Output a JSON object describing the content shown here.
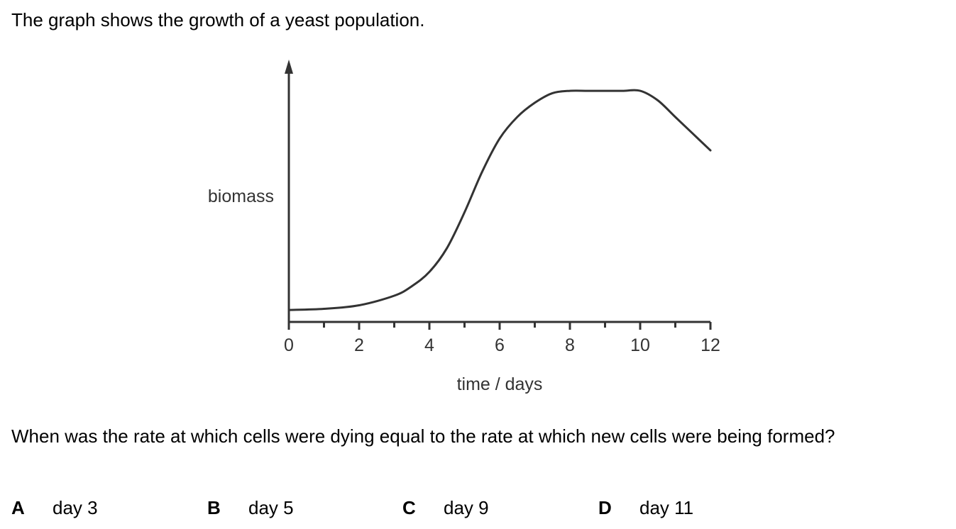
{
  "intro_text": "The graph shows the growth of a yeast population.",
  "question_text": "When was the rate at which cells were dying equal to the rate at which new cells were being formed?",
  "options": [
    {
      "letter": "A",
      "text": "day 3"
    },
    {
      "letter": "B",
      "text": "day 5"
    },
    {
      "letter": "C",
      "text": "day 9"
    },
    {
      "letter": "D",
      "text": "day 11"
    }
  ],
  "chart_data": {
    "type": "line",
    "title": "",
    "xlabel": "time / days",
    "ylabel": "biomass",
    "xlim": [
      0,
      12
    ],
    "ylim": [
      0,
      100
    ],
    "x_tick_labels": [
      "0",
      "2",
      "4",
      "6",
      "8",
      "10",
      "12"
    ],
    "y_ticks_shown": false,
    "grid": false,
    "legend": "none",
    "line_color": "#333333",
    "series": [
      {
        "x": [
          0,
          1,
          2,
          3,
          3.5,
          4,
          4.5,
          5,
          5.5,
          6,
          6.5,
          7,
          7.5,
          8,
          8.5,
          9,
          9.5,
          10,
          10.5,
          11,
          11.5,
          12
        ],
        "values": [
          5,
          5.5,
          7,
          11,
          15,
          21,
          31,
          46,
          63,
          77,
          86,
          92,
          96,
          97,
          97,
          97,
          97,
          97,
          93,
          86,
          79,
          72
        ]
      }
    ]
  }
}
